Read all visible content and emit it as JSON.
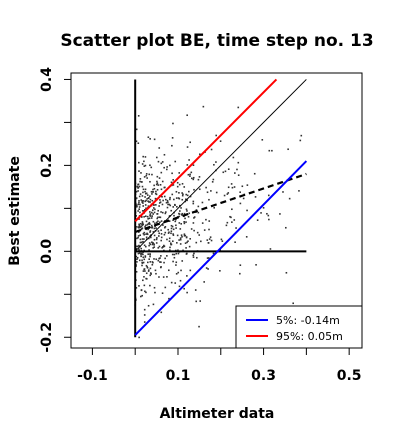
{
  "chart_data": {
    "type": "scatter",
    "title": "Scatter plot BE, time step no. 13",
    "xlabel": "Altimeter data",
    "ylabel": "Best estimate",
    "xlim": [
      -0.15,
      0.53
    ],
    "ylim": [
      -0.225,
      0.415
    ],
    "x_ticks": [
      -0.1,
      0.1,
      0.3,
      0.5
    ],
    "x_tick_labels": [
      "-0.1",
      "0.1",
      "0.3",
      "0.5"
    ],
    "x_minor_ticks": [
      0.0,
      0.2,
      0.4
    ],
    "y_ticks": [
      -0.2,
      0.0,
      0.2,
      0.4
    ],
    "y_tick_labels": [
      "-0.2",
      "0.0",
      "0.2",
      "0.4"
    ],
    "y_minor_ticks": [
      -0.1,
      0.1,
      0.3
    ],
    "grid": false,
    "legend_position": "bottom-right",
    "points_color": "#333333",
    "reference_lines": [
      {
        "name": "x-axis",
        "x": [
          0,
          0.4
        ],
        "y": [
          0,
          0
        ],
        "color": "#000000",
        "style": "solid",
        "width": 2
      },
      {
        "name": "y-axis",
        "x": [
          0,
          0
        ],
        "y": [
          -0.2,
          0.4
        ],
        "color": "#000000",
        "style": "solid",
        "width": 2
      },
      {
        "name": "identity",
        "x": [
          0,
          0.4
        ],
        "y": [
          0,
          0.4
        ],
        "color": "#000000",
        "style": "solid",
        "width": 1
      },
      {
        "name": "regression",
        "x": [
          0,
          0.4
        ],
        "y": [
          0.045,
          0.18
        ],
        "color": "#000000",
        "style": "dashed",
        "width": 2.2
      },
      {
        "name": "5%",
        "x": [
          0,
          0.4
        ],
        "y": [
          -0.195,
          0.21
        ],
        "color": "#0000ff",
        "style": "solid",
        "width": 2
      },
      {
        "name": "95%",
        "x": [
          0,
          0.33
        ],
        "y": [
          0.07,
          0.4
        ],
        "color": "#ff0000",
        "style": "solid",
        "width": 2
      }
    ],
    "legend": [
      {
        "label": "5%: -0.14m",
        "color": "#0000ff"
      },
      {
        "label": "95%:  0.05m",
        "color": "#ff0000"
      }
    ]
  }
}
